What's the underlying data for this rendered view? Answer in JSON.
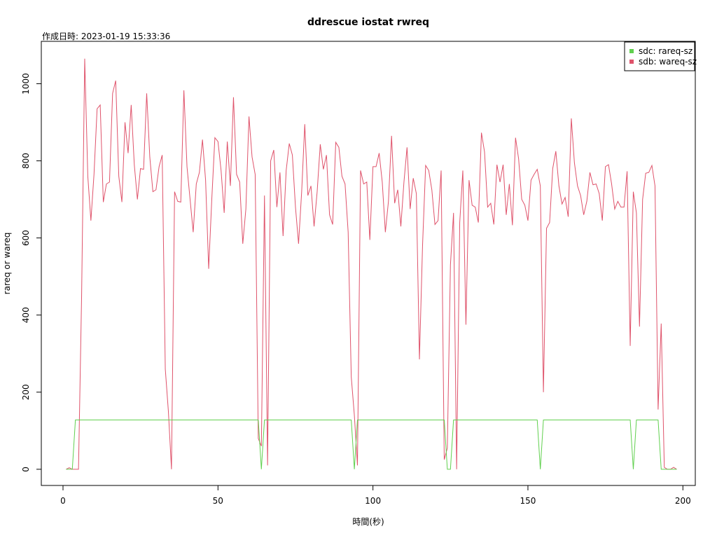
{
  "chart_data": {
    "type": "line",
    "title": "ddrescue iostat rwreq",
    "subtitle": "作成日時: 2023-01-19 15:33:36",
    "xlabel": "時間(秒)",
    "ylabel": "rareq or wareq",
    "xlim": [
      -7,
      204
    ],
    "ylim": [
      -42,
      1110
    ],
    "xticks": [
      0,
      50,
      100,
      150,
      200
    ],
    "yticks": [
      0,
      200,
      400,
      600,
      800,
      1000
    ],
    "legend_position": "top-right",
    "grid": false,
    "series": [
      {
        "name": "sdb: wareq-sz",
        "color": "#df536b",
        "points": [
          [
            1,
            0
          ],
          [
            2,
            4
          ],
          [
            3,
            0
          ],
          [
            4,
            0
          ],
          [
            5,
            0
          ],
          [
            6,
            450
          ],
          [
            7,
            1065
          ],
          [
            8,
            760
          ],
          [
            9,
            645
          ],
          [
            10,
            765
          ],
          [
            11,
            935
          ],
          [
            12,
            945
          ],
          [
            13,
            693
          ],
          [
            14,
            740
          ],
          [
            15,
            745
          ],
          [
            16,
            975
          ],
          [
            17,
            1008
          ],
          [
            18,
            760
          ],
          [
            19,
            693
          ],
          [
            20,
            900
          ],
          [
            21,
            820
          ],
          [
            22,
            945
          ],
          [
            23,
            790
          ],
          [
            24,
            700
          ],
          [
            25,
            780
          ],
          [
            26,
            778
          ],
          [
            27,
            975
          ],
          [
            28,
            810
          ],
          [
            29,
            720
          ],
          [
            30,
            725
          ],
          [
            31,
            785
          ],
          [
            32,
            815
          ],
          [
            33,
            260
          ],
          [
            34,
            150
          ],
          [
            35,
            0
          ],
          [
            36,
            720
          ],
          [
            37,
            695
          ],
          [
            38,
            693
          ],
          [
            39,
            983
          ],
          [
            40,
            785
          ],
          [
            41,
            700
          ],
          [
            42,
            615
          ],
          [
            43,
            740
          ],
          [
            44,
            770
          ],
          [
            45,
            855
          ],
          [
            46,
            750
          ],
          [
            47,
            520
          ],
          [
            48,
            700
          ],
          [
            49,
            860
          ],
          [
            50,
            850
          ],
          [
            51,
            775
          ],
          [
            52,
            665
          ],
          [
            53,
            850
          ],
          [
            54,
            735
          ],
          [
            55,
            965
          ],
          [
            56,
            765
          ],
          [
            57,
            745
          ],
          [
            58,
            585
          ],
          [
            59,
            675
          ],
          [
            60,
            915
          ],
          [
            61,
            810
          ],
          [
            62,
            765
          ],
          [
            63,
            80
          ],
          [
            64,
            60
          ],
          [
            65,
            710
          ],
          [
            66,
            10
          ],
          [
            67,
            800
          ],
          [
            68,
            828
          ],
          [
            69,
            680
          ],
          [
            70,
            770
          ],
          [
            71,
            605
          ],
          [
            72,
            775
          ],
          [
            73,
            845
          ],
          [
            74,
            815
          ],
          [
            75,
            680
          ],
          [
            76,
            585
          ],
          [
            77,
            720
          ],
          [
            78,
            895
          ],
          [
            79,
            710
          ],
          [
            80,
            735
          ],
          [
            81,
            630
          ],
          [
            82,
            720
          ],
          [
            83,
            843
          ],
          [
            84,
            778
          ],
          [
            85,
            815
          ],
          [
            86,
            660
          ],
          [
            87,
            635
          ],
          [
            88,
            848
          ],
          [
            89,
            835
          ],
          [
            90,
            760
          ],
          [
            91,
            740
          ],
          [
            92,
            615
          ],
          [
            93,
            240
          ],
          [
            94,
            140
          ],
          [
            95,
            10
          ],
          [
            96,
            775
          ],
          [
            97,
            740
          ],
          [
            98,
            745
          ],
          [
            99,
            595
          ],
          [
            100,
            785
          ],
          [
            101,
            785
          ],
          [
            102,
            820
          ],
          [
            103,
            745
          ],
          [
            104,
            615
          ],
          [
            105,
            695
          ],
          [
            106,
            865
          ],
          [
            107,
            690
          ],
          [
            108,
            725
          ],
          [
            109,
            630
          ],
          [
            110,
            745
          ],
          [
            111,
            835
          ],
          [
            112,
            675
          ],
          [
            113,
            755
          ],
          [
            114,
            715
          ],
          [
            115,
            285
          ],
          [
            116,
            580
          ],
          [
            117,
            788
          ],
          [
            118,
            775
          ],
          [
            119,
            725
          ],
          [
            120,
            635
          ],
          [
            121,
            645
          ],
          [
            122,
            775
          ],
          [
            123,
            25
          ],
          [
            124,
            55
          ],
          [
            125,
            530
          ],
          [
            126,
            665
          ],
          [
            127,
            0
          ],
          [
            128,
            640
          ],
          [
            129,
            775
          ],
          [
            130,
            375
          ],
          [
            131,
            750
          ],
          [
            132,
            685
          ],
          [
            133,
            680
          ],
          [
            134,
            640
          ],
          [
            135,
            873
          ],
          [
            136,
            823
          ],
          [
            137,
            680
          ],
          [
            138,
            690
          ],
          [
            139,
            635
          ],
          [
            140,
            790
          ],
          [
            141,
            745
          ],
          [
            142,
            790
          ],
          [
            143,
            660
          ],
          [
            144,
            740
          ],
          [
            145,
            633
          ],
          [
            146,
            860
          ],
          [
            147,
            805
          ],
          [
            148,
            700
          ],
          [
            149,
            685
          ],
          [
            150,
            645
          ],
          [
            151,
            750
          ],
          [
            152,
            765
          ],
          [
            153,
            778
          ],
          [
            154,
            735
          ],
          [
            155,
            200
          ],
          [
            156,
            625
          ],
          [
            157,
            640
          ],
          [
            158,
            780
          ],
          [
            159,
            825
          ],
          [
            160,
            735
          ],
          [
            161,
            688
          ],
          [
            162,
            705
          ],
          [
            163,
            655
          ],
          [
            164,
            910
          ],
          [
            165,
            795
          ],
          [
            166,
            735
          ],
          [
            167,
            710
          ],
          [
            168,
            660
          ],
          [
            169,
            695
          ],
          [
            170,
            770
          ],
          [
            171,
            738
          ],
          [
            172,
            740
          ],
          [
            173,
            715
          ],
          [
            174,
            645
          ],
          [
            175,
            785
          ],
          [
            176,
            790
          ],
          [
            177,
            740
          ],
          [
            178,
            675
          ],
          [
            179,
            695
          ],
          [
            180,
            680
          ],
          [
            181,
            680
          ],
          [
            182,
            773
          ],
          [
            183,
            320
          ],
          [
            184,
            720
          ],
          [
            185,
            665
          ],
          [
            186,
            370
          ],
          [
            187,
            700
          ],
          [
            188,
            768
          ],
          [
            189,
            770
          ],
          [
            190,
            788
          ],
          [
            191,
            735
          ],
          [
            192,
            155
          ],
          [
            193,
            378
          ],
          [
            194,
            5
          ],
          [
            195,
            0
          ],
          [
            196,
            0
          ],
          [
            197,
            5
          ],
          [
            198,
            0
          ]
        ]
      },
      {
        "name": "sdc: rareq-sz",
        "color": "#61d04f",
        "points": [
          [
            1,
            0
          ],
          [
            2,
            0
          ],
          [
            3,
            0
          ],
          [
            4,
            128
          ],
          [
            5,
            128
          ],
          [
            10,
            128
          ],
          [
            20,
            128
          ],
          [
            30,
            128
          ],
          [
            40,
            128
          ],
          [
            50,
            128
          ],
          [
            60,
            128
          ],
          [
            62,
            128
          ],
          [
            63,
            128
          ],
          [
            64,
            0
          ],
          [
            65,
            128
          ],
          [
            66,
            128
          ],
          [
            70,
            128
          ],
          [
            80,
            128
          ],
          [
            90,
            128
          ],
          [
            92,
            128
          ],
          [
            93,
            128
          ],
          [
            94,
            0
          ],
          [
            95,
            128
          ],
          [
            96,
            128
          ],
          [
            100,
            128
          ],
          [
            110,
            128
          ],
          [
            120,
            128
          ],
          [
            122,
            128
          ],
          [
            123,
            128
          ],
          [
            124,
            0
          ],
          [
            125,
            0
          ],
          [
            126,
            128
          ],
          [
            127,
            128
          ],
          [
            130,
            128
          ],
          [
            140,
            128
          ],
          [
            150,
            128
          ],
          [
            153,
            128
          ],
          [
            154,
            0
          ],
          [
            155,
            128
          ],
          [
            156,
            128
          ],
          [
            160,
            128
          ],
          [
            170,
            128
          ],
          [
            180,
            128
          ],
          [
            182,
            128
          ],
          [
            183,
            128
          ],
          [
            184,
            0
          ],
          [
            185,
            128
          ],
          [
            186,
            128
          ],
          [
            190,
            128
          ],
          [
            192,
            128
          ],
          [
            193,
            0
          ],
          [
            194,
            0
          ],
          [
            195,
            0
          ],
          [
            196,
            0
          ],
          [
            197,
            0
          ],
          [
            198,
            0
          ]
        ]
      }
    ]
  }
}
